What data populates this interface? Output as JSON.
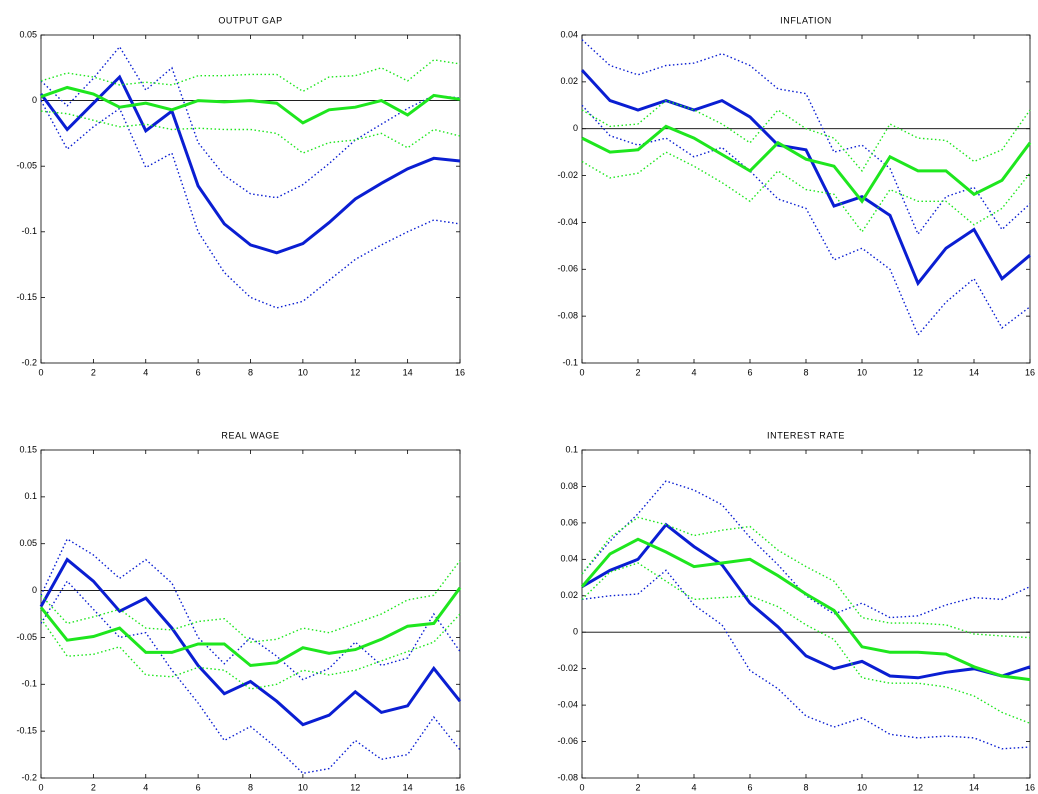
{
  "chart_data": [
    {
      "type": "line",
      "title": "OUTPUT GAP",
      "x": [
        0,
        1,
        2,
        3,
        4,
        5,
        6,
        7,
        8,
        9,
        10,
        11,
        12,
        13,
        14,
        15,
        16
      ],
      "xlim": [
        0,
        16
      ],
      "xticks": [
        0,
        2,
        4,
        6,
        8,
        10,
        12,
        14,
        16
      ],
      "ylim": [
        -0.2,
        0.05
      ],
      "yticks": [
        -0.2,
        -0.15,
        -0.1,
        -0.05,
        0,
        0.05
      ],
      "zero_line": true,
      "series": [
        {
          "color": "#0a1ed2",
          "style": "solid",
          "values": [
            0.005,
            -0.022,
            -0.002,
            0.018,
            -0.023,
            -0.008,
            -0.065,
            -0.094,
            -0.11,
            -0.116,
            -0.109,
            -0.093,
            -0.075,
            -0.063,
            -0.052,
            -0.044,
            -0.046
          ]
        },
        {
          "color": "#0a1ed2",
          "style": "dotted",
          "values": [
            0.015,
            -0.004,
            0.017,
            0.041,
            0.008,
            0.025,
            -0.032,
            -0.057,
            -0.071,
            -0.074,
            -0.064,
            -0.048,
            -0.03,
            -0.018,
            -0.006,
            0.004,
            0.002
          ]
        },
        {
          "color": "#0a1ed2",
          "style": "dotted",
          "values": [
            0,
            -0.037,
            -0.02,
            -0.006,
            -0.051,
            -0.04,
            -0.1,
            -0.131,
            -0.15,
            -0.158,
            -0.153,
            -0.137,
            -0.121,
            -0.11,
            -0.1,
            -0.091,
            -0.094
          ]
        },
        {
          "color": "#1ee61e",
          "style": "solid",
          "values": [
            0.003,
            0.01,
            0.005,
            -0.005,
            -0.002,
            -0.007,
            0,
            -0.001,
            0,
            -0.002,
            -0.017,
            -0.007,
            -0.005,
            0,
            -0.011,
            0.004,
            0.001
          ]
        },
        {
          "color": "#1ee61e",
          "style": "dotted",
          "values": [
            0.015,
            0.021,
            0.018,
            0.012,
            0.014,
            0.012,
            0.019,
            0.019,
            0.02,
            0.02,
            0.007,
            0.018,
            0.019,
            0.025,
            0.015,
            0.031,
            0.028
          ]
        },
        {
          "color": "#1ee61e",
          "style": "dotted",
          "values": [
            -0.008,
            -0.01,
            -0.015,
            -0.02,
            -0.018,
            -0.022,
            -0.021,
            -0.022,
            -0.022,
            -0.025,
            -0.04,
            -0.032,
            -0.03,
            -0.025,
            -0.036,
            -0.022,
            -0.027
          ]
        }
      ]
    },
    {
      "type": "line",
      "title": "INFLATION",
      "x": [
        0,
        1,
        2,
        3,
        4,
        5,
        6,
        7,
        8,
        9,
        10,
        11,
        12,
        13,
        14,
        15,
        16
      ],
      "xlim": [
        0,
        16
      ],
      "xticks": [
        0,
        2,
        4,
        6,
        8,
        10,
        12,
        14,
        16
      ],
      "ylim": [
        -0.1,
        0.04
      ],
      "yticks": [
        -0.1,
        -0.08,
        -0.06,
        -0.04,
        -0.02,
        0,
        0.02,
        0.04
      ],
      "zero_line": true,
      "series": [
        {
          "color": "#0a1ed2",
          "style": "solid",
          "values": [
            0.025,
            0.012,
            0.008,
            0.012,
            0.008,
            0.012,
            0.005,
            -0.007,
            -0.009,
            -0.033,
            -0.029,
            -0.037,
            -0.066,
            -0.051,
            -0.043,
            -0.064,
            -0.054
          ]
        },
        {
          "color": "#0a1ed2",
          "style": "dotted",
          "values": [
            0.038,
            0.027,
            0.023,
            0.027,
            0.028,
            0.032,
            0.027,
            0.017,
            0.015,
            -0.01,
            -0.007,
            -0.017,
            -0.045,
            -0.029,
            -0.025,
            -0.043,
            -0.032
          ]
        },
        {
          "color": "#0a1ed2",
          "style": "dotted",
          "values": [
            0.01,
            -0.003,
            -0.007,
            -0.004,
            -0.012,
            -0.008,
            -0.018,
            -0.03,
            -0.034,
            -0.056,
            -0.051,
            -0.06,
            -0.088,
            -0.074,
            -0.064,
            -0.085,
            -0.076
          ]
        },
        {
          "color": "#1ee61e",
          "style": "solid",
          "values": [
            -0.004,
            -0.01,
            -0.009,
            0.001,
            -0.004,
            -0.011,
            -0.018,
            -0.006,
            -0.013,
            -0.016,
            -0.031,
            -0.012,
            -0.018,
            -0.018,
            -0.028,
            -0.022,
            -0.006
          ]
        },
        {
          "color": "#1ee61e",
          "style": "dotted",
          "values": [
            0.008,
            0.001,
            0.002,
            0.012,
            0.008,
            0.002,
            -0.006,
            0.008,
            0,
            -0.004,
            -0.018,
            0.002,
            -0.004,
            -0.005,
            -0.014,
            -0.009,
            0.008
          ]
        },
        {
          "color": "#1ee61e",
          "style": "dotted",
          "values": [
            -0.014,
            -0.021,
            -0.019,
            -0.01,
            -0.016,
            -0.023,
            -0.031,
            -0.018,
            -0.026,
            -0.028,
            -0.044,
            -0.026,
            -0.031,
            -0.031,
            -0.041,
            -0.034,
            -0.019
          ]
        }
      ]
    },
    {
      "type": "line",
      "title": "REAL WAGE",
      "x": [
        0,
        1,
        2,
        3,
        4,
        5,
        6,
        7,
        8,
        9,
        10,
        11,
        12,
        13,
        14,
        15,
        16
      ],
      "xlim": [
        0,
        16
      ],
      "xticks": [
        0,
        2,
        4,
        6,
        8,
        10,
        12,
        14,
        16
      ],
      "ylim": [
        -0.2,
        0.15
      ],
      "yticks": [
        -0.2,
        -0.15,
        -0.1,
        -0.05,
        0,
        0.05,
        0.1,
        0.15
      ],
      "zero_line": true,
      "series": [
        {
          "color": "#0a1ed2",
          "style": "solid",
          "values": [
            -0.017,
            0.033,
            0.01,
            -0.022,
            -0.008,
            -0.04,
            -0.08,
            -0.11,
            -0.097,
            -0.118,
            -0.143,
            -0.133,
            -0.108,
            -0.13,
            -0.123,
            -0.083,
            -0.118
          ]
        },
        {
          "color": "#0a1ed2",
          "style": "dotted",
          "values": [
            -0.005,
            0.055,
            0.038,
            0.013,
            0.033,
            0.008,
            -0.05,
            -0.078,
            -0.05,
            -0.07,
            -0.095,
            -0.083,
            -0.055,
            -0.08,
            -0.072,
            -0.025,
            -0.065
          ]
        },
        {
          "color": "#0a1ed2",
          "style": "dotted",
          "values": [
            -0.035,
            0.01,
            -0.02,
            -0.05,
            -0.045,
            -0.085,
            -0.12,
            -0.16,
            -0.145,
            -0.168,
            -0.195,
            -0.19,
            -0.16,
            -0.18,
            -0.175,
            -0.135,
            -0.17
          ]
        },
        {
          "color": "#1ee61e",
          "style": "solid",
          "values": [
            -0.018,
            -0.053,
            -0.049,
            -0.04,
            -0.066,
            -0.066,
            -0.057,
            -0.057,
            -0.08,
            -0.077,
            -0.061,
            -0.067,
            -0.063,
            -0.052,
            -0.038,
            -0.035,
            0.003
          ]
        },
        {
          "color": "#1ee61e",
          "style": "dotted",
          "values": [
            -0.005,
            -0.035,
            -0.028,
            -0.02,
            -0.04,
            -0.042,
            -0.033,
            -0.03,
            -0.055,
            -0.052,
            -0.04,
            -0.045,
            -0.035,
            -0.025,
            -0.01,
            -0.005,
            0.032
          ]
        },
        {
          "color": "#1ee61e",
          "style": "dotted",
          "values": [
            -0.03,
            -0.07,
            -0.068,
            -0.06,
            -0.09,
            -0.092,
            -0.082,
            -0.085,
            -0.105,
            -0.1,
            -0.085,
            -0.09,
            -0.085,
            -0.075,
            -0.065,
            -0.055,
            -0.025
          ]
        }
      ]
    },
    {
      "type": "line",
      "title": "INTEREST RATE",
      "x": [
        0,
        1,
        2,
        3,
        4,
        5,
        6,
        7,
        8,
        9,
        10,
        11,
        12,
        13,
        14,
        15,
        16
      ],
      "xlim": [
        0,
        16
      ],
      "xticks": [
        0,
        2,
        4,
        6,
        8,
        10,
        12,
        14,
        16
      ],
      "ylim": [
        -0.08,
        0.1
      ],
      "yticks": [
        -0.08,
        -0.06,
        -0.04,
        -0.02,
        0,
        0.02,
        0.04,
        0.06,
        0.08,
        0.1
      ],
      "zero_line": true,
      "series": [
        {
          "color": "#0a1ed2",
          "style": "solid",
          "values": [
            0.025,
            0.034,
            0.04,
            0.059,
            0.047,
            0.037,
            0.016,
            0.003,
            -0.013,
            -0.02,
            -0.016,
            -0.024,
            -0.025,
            -0.022,
            -0.02,
            -0.024,
            -0.019
          ]
        },
        {
          "color": "#0a1ed2",
          "style": "dotted",
          "values": [
            0.032,
            0.05,
            0.065,
            0.083,
            0.078,
            0.07,
            0.052,
            0.037,
            0.02,
            0.01,
            0.016,
            0.008,
            0.009,
            0.015,
            0.019,
            0.018,
            0.025
          ]
        },
        {
          "color": "#0a1ed2",
          "style": "dotted",
          "values": [
            0.018,
            0.02,
            0.021,
            0.034,
            0.015,
            0.004,
            -0.021,
            -0.031,
            -0.046,
            -0.052,
            -0.047,
            -0.056,
            -0.058,
            -0.057,
            -0.058,
            -0.064,
            -0.063
          ]
        },
        {
          "color": "#1ee61e",
          "style": "solid",
          "values": [
            0.025,
            0.043,
            0.051,
            0.044,
            0.036,
            0.038,
            0.04,
            0.031,
            0.021,
            0.012,
            -0.008,
            -0.011,
            -0.011,
            -0.012,
            -0.019,
            -0.024,
            -0.026
          ]
        },
        {
          "color": "#1ee61e",
          "style": "dotted",
          "values": [
            0.032,
            0.052,
            0.063,
            0.059,
            0.053,
            0.056,
            0.058,
            0.045,
            0.036,
            0.028,
            0.008,
            0.005,
            0.005,
            0.004,
            -0.001,
            -0.002,
            -0.003
          ]
        },
        {
          "color": "#1ee61e",
          "style": "dotted",
          "values": [
            0.018,
            0.033,
            0.038,
            0.028,
            0.018,
            0.019,
            0.02,
            0.014,
            0.004,
            -0.004,
            -0.025,
            -0.028,
            -0.028,
            -0.03,
            -0.035,
            -0.044,
            -0.05
          ]
        }
      ]
    }
  ]
}
